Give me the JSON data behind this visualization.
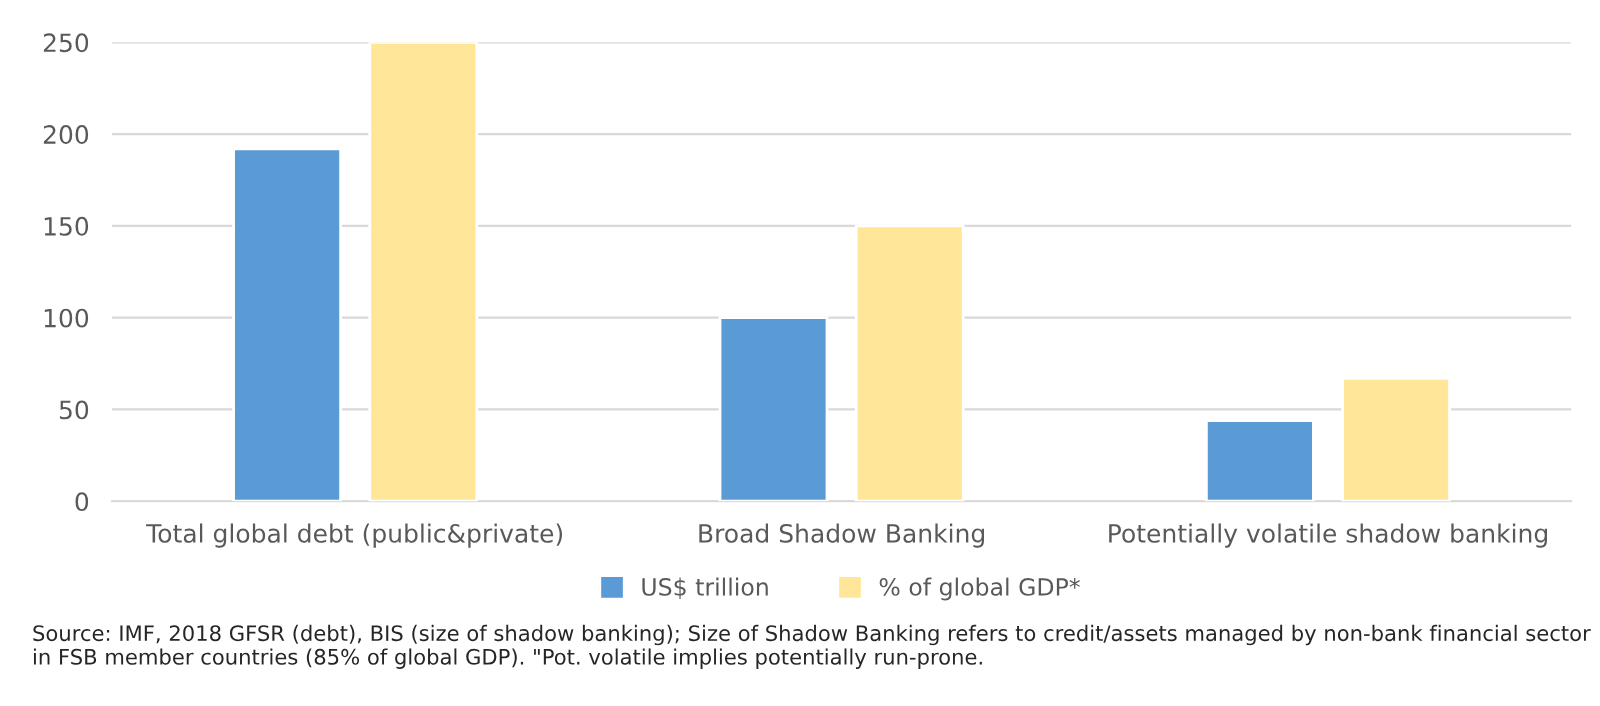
{
  "chart_data": {
    "type": "bar",
    "categories": [
      "Total global debt (public&private)",
      "Broad Shadow Banking",
      "Potentially volatile shadow banking"
    ],
    "series": [
      {
        "name": "US$ trillion",
        "color": "#5b9bd5",
        "values": [
          192,
          100,
          44
        ]
      },
      {
        "name": "% of global GDP*",
        "color": "#ffe699",
        "values": [
          250,
          150,
          67
        ]
      }
    ],
    "ylim": [
      0,
      250
    ],
    "yticks": [
      0,
      50,
      100,
      150,
      200,
      250
    ],
    "grid": "y",
    "legend": "bottom",
    "annotations": [
      "Source: IMF, 2018 GFSR (debt), BIS (size of shadow banking); Size of Shadow Banking refers to credit/assets managed by non-bank financial sector in FSB member countries (85% of global GDP). \"Pot. volatile implies potentially run-prone."
    ]
  }
}
